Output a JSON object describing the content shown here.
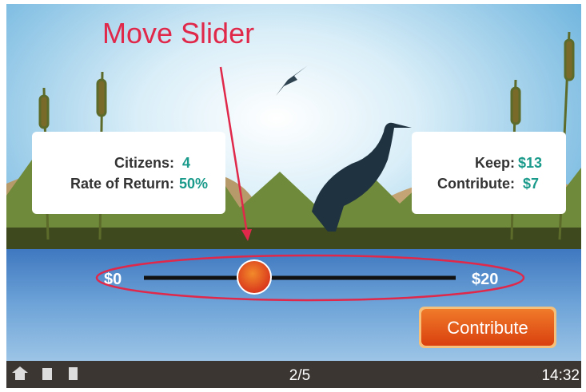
{
  "annotation": {
    "title": "Move Slider"
  },
  "left_panel": {
    "rows": [
      {
        "label": "Citizens:",
        "value": "4"
      },
      {
        "label": "Rate of Return:",
        "value": "50%"
      }
    ]
  },
  "right_panel": {
    "rows": [
      {
        "label": "Keep:",
        "value": "$13"
      },
      {
        "label": "Contribute:",
        "value": "$7"
      }
    ]
  },
  "slider": {
    "min_label": "$0",
    "max_label": "$20"
  },
  "button": {
    "label": "Contribute"
  },
  "status_bar": {
    "progress": "2/5",
    "time": "14:32"
  }
}
